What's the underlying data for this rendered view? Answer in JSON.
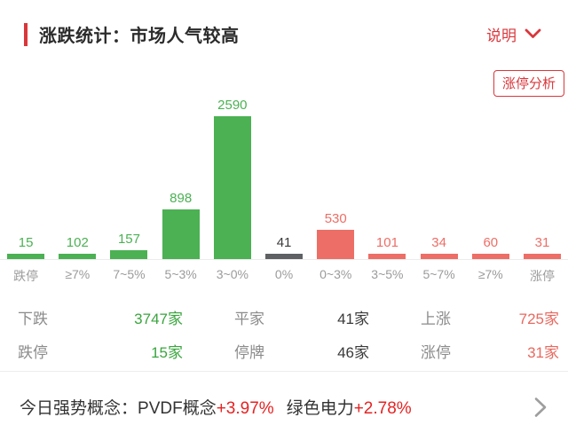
{
  "header": {
    "title": "涨跌统计：市场人气较高",
    "info_label": "说明"
  },
  "analysis_button_label": "涨停分析",
  "chart_data": {
    "type": "bar",
    "title": "涨跌统计",
    "categories": [
      "跌停",
      "≥7%",
      "7~5%",
      "5~3%",
      "3~0%",
      "0%",
      "0~3%",
      "3~5%",
      "5~7%",
      "≥7%",
      "涨停"
    ],
    "values": [
      15,
      102,
      157,
      898,
      2590,
      41,
      530,
      101,
      34,
      60,
      31
    ],
    "colors": [
      "green",
      "green",
      "green",
      "green",
      "green",
      "gray",
      "red",
      "red",
      "red",
      "red",
      "red"
    ],
    "xlabel": "",
    "ylabel": "",
    "ylim": [
      0,
      2600
    ],
    "grid": false,
    "legend": "none",
    "value_labels": "above-bars"
  },
  "palette": {
    "green": "#4bb153",
    "red": "#ed6e66",
    "gray": "#5e6063",
    "dark": "#3a3a3a",
    "accent": "#d9373c",
    "change_red": "#e62222",
    "stat_green": "#3aa53e",
    "stat_red": "#e8695f",
    "chevron_gray": "#9e9e9e"
  },
  "stats": {
    "rows": [
      [
        {
          "label": "下跌",
          "value": "3747家",
          "color": "stat_green"
        },
        {
          "label": "平家",
          "value": "41家",
          "color": "dark"
        },
        {
          "label": "上涨",
          "value": "725家",
          "color": "stat_red"
        }
      ],
      [
        {
          "label": "跌停",
          "value": "15家",
          "color": "stat_green"
        },
        {
          "label": "停牌",
          "value": "46家",
          "color": "dark"
        },
        {
          "label": "涨停",
          "value": "31家",
          "color": "stat_red"
        }
      ]
    ]
  },
  "footer": {
    "prefix": "今日强势概念：",
    "concepts": [
      {
        "name": "PVDF概念",
        "change": "+3.97%"
      },
      {
        "name": "绿色电力",
        "change": "+2.78%"
      }
    ]
  }
}
